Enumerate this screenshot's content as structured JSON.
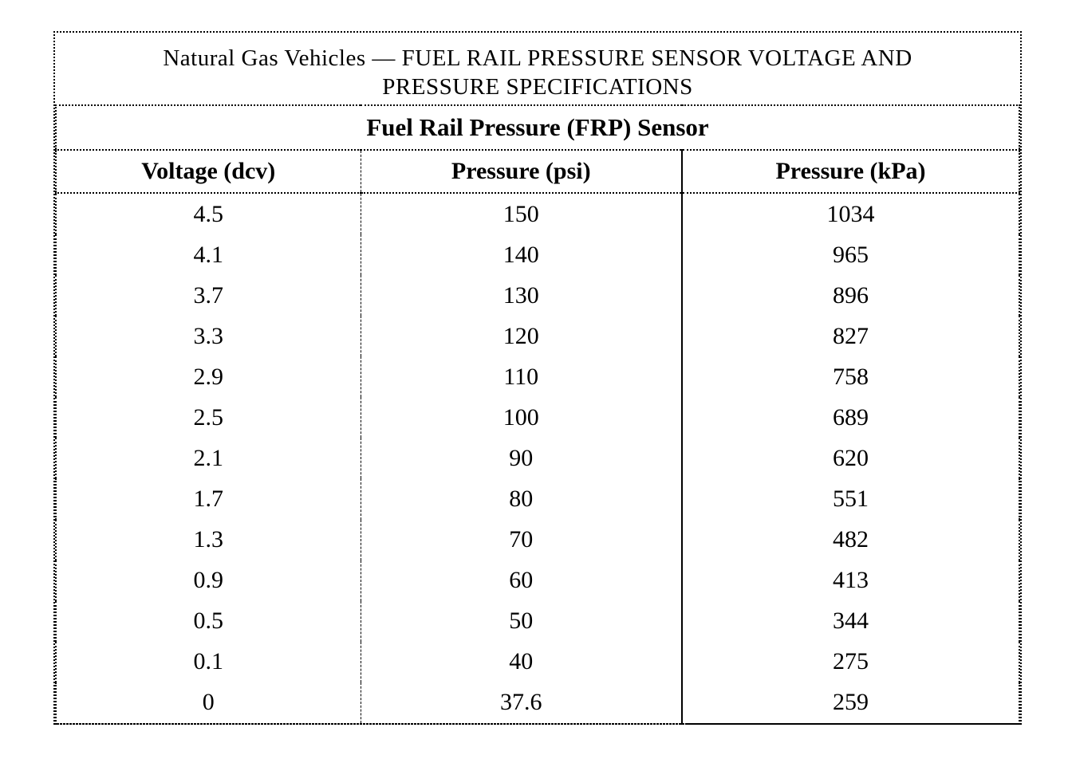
{
  "title": {
    "line1": "Natural Gas Vehicles — FUEL RAIL PRESSURE SENSOR VOLTAGE AND",
    "line2": "PRESSURE SPECIFICATIONS"
  },
  "table": {
    "caption": "Fuel Rail Pressure (FRP) Sensor",
    "columns": [
      "Voltage (dcv)",
      "Pressure (psi)",
      "Pressure (kPa)"
    ],
    "rows": [
      [
        "4.5",
        "150",
        "1034"
      ],
      [
        "4.1",
        "140",
        "965"
      ],
      [
        "3.7",
        "130",
        "896"
      ],
      [
        "3.3",
        "120",
        "827"
      ],
      [
        "2.9",
        "110",
        "758"
      ],
      [
        "2.5",
        "100",
        "689"
      ],
      [
        "2.1",
        "90",
        "620"
      ],
      [
        "1.7",
        "80",
        "551"
      ],
      [
        "1.3",
        "70",
        "482"
      ],
      [
        "0.9",
        "60",
        "413"
      ],
      [
        "0.5",
        "50",
        "344"
      ],
      [
        "0.1",
        "40",
        "275"
      ],
      [
        "0",
        "37.6",
        "259"
      ]
    ]
  },
  "colors": {
    "text": "#000000",
    "border": "#000000",
    "background": "#ffffff"
  }
}
